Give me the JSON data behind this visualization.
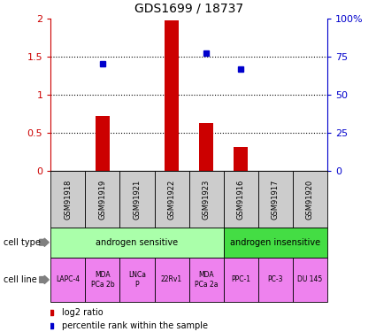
{
  "title": "GDS1699 / 18737",
  "samples": [
    "GSM91918",
    "GSM91919",
    "GSM91921",
    "GSM91922",
    "GSM91923",
    "GSM91916",
    "GSM91917",
    "GSM91920"
  ],
  "log2_ratios": [
    0,
    0.72,
    0,
    1.97,
    0.63,
    0.32,
    0,
    0
  ],
  "percentile_ranks_pct": [
    null,
    70,
    null,
    null,
    77,
    67,
    null,
    null
  ],
  "ylim_left": [
    0,
    2
  ],
  "ylim_right": [
    0,
    100
  ],
  "yticks_left": [
    0,
    0.5,
    1.0,
    1.5,
    2.0
  ],
  "ytick_labels_left": [
    "0",
    "0.5",
    "1",
    "1.5",
    "2"
  ],
  "yticks_right": [
    0,
    25,
    50,
    75,
    100
  ],
  "ytick_labels_right": [
    "0",
    "25",
    "50",
    "75",
    "100%"
  ],
  "bar_color": "#cc0000",
  "dot_color": "#0000cc",
  "cell_type_groups": [
    {
      "label": "androgen sensitive",
      "start": 0,
      "end": 5,
      "color": "#aaffaa"
    },
    {
      "label": "androgen insensitive",
      "start": 5,
      "end": 8,
      "color": "#44dd44"
    }
  ],
  "cell_lines": [
    "LAPC-4",
    "MDA\nPCa 2b",
    "LNCa\nP",
    "22Rv1",
    "MDA\nPCa 2a",
    "PPC-1",
    "PC-3",
    "DU 145"
  ],
  "cell_line_color": "#ee82ee",
  "sample_box_color": "#cccccc",
  "cell_type_label": "cell type",
  "cell_line_label": "cell line",
  "legend_red_label": "log2 ratio",
  "legend_blue_label": "percentile rank within the sample",
  "background_color": "#ffffff"
}
